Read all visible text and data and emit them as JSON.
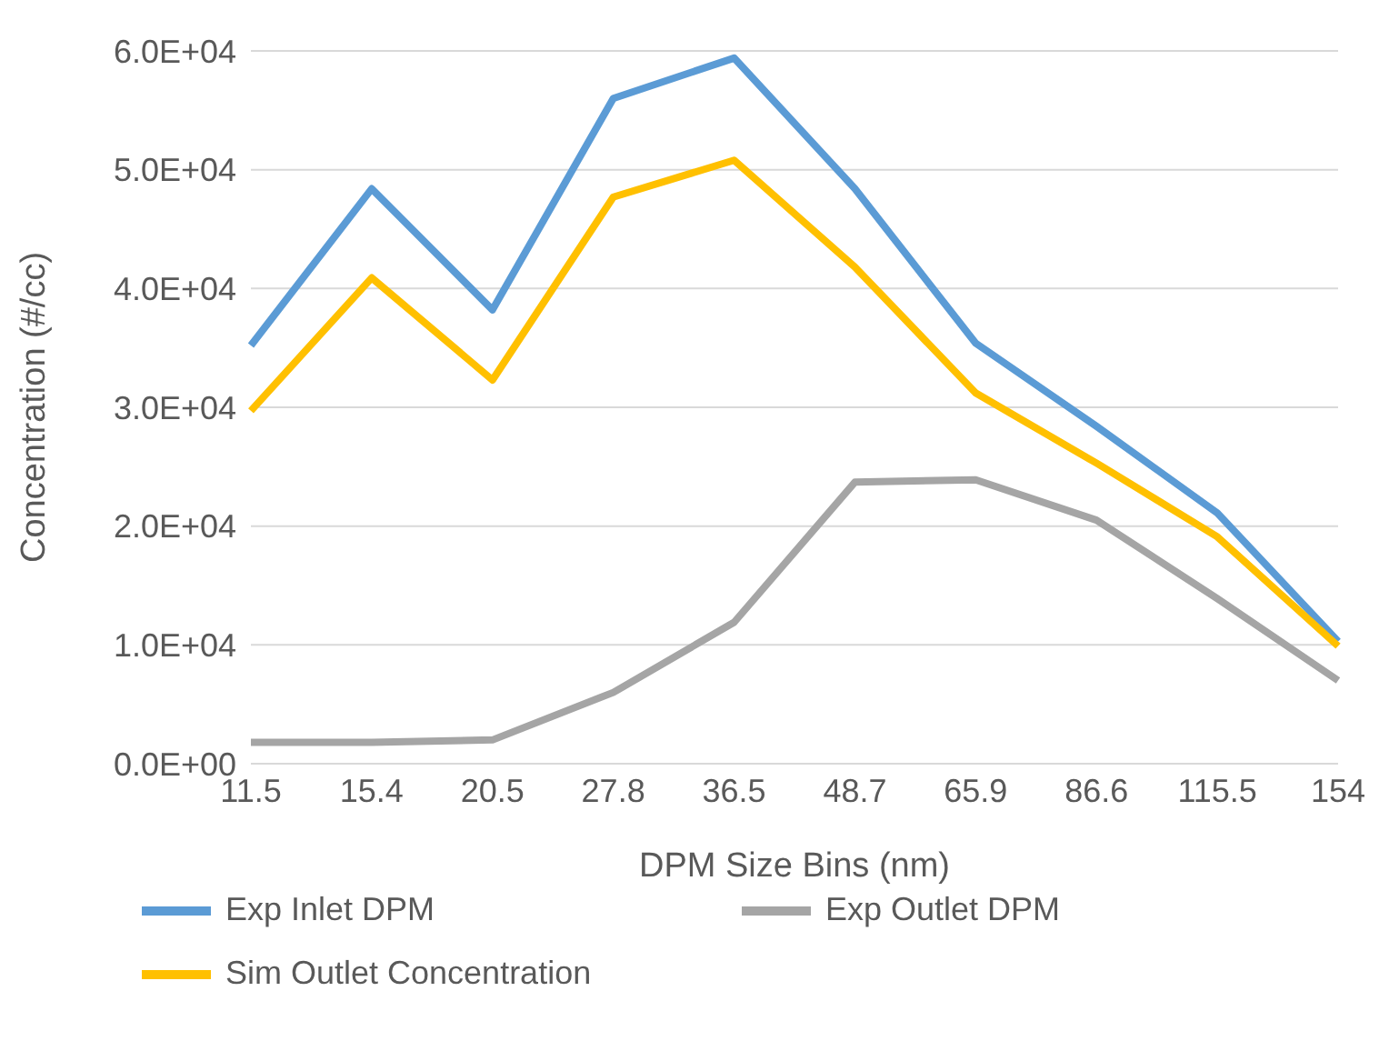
{
  "chart_data": {
    "type": "line",
    "xlabel": "DPM Size Bins (nm)",
    "ylabel": "Concentration (#/cc)",
    "categories": [
      "11.5",
      "15.4",
      "20.5",
      "27.8",
      "36.5",
      "48.7",
      "65.9",
      "86.6",
      "115.5",
      "154"
    ],
    "series": [
      {
        "name": "Exp Inlet DPM",
        "color": "#5b9bd5",
        "values": [
          35200,
          48400,
          38200,
          56000,
          59400,
          48400,
          35400,
          28400,
          21100,
          10300
        ]
      },
      {
        "name": "Exp Outlet DPM",
        "color": "#a5a5a5",
        "values": [
          1800,
          1800,
          2000,
          6000,
          11900,
          23700,
          23900,
          20500,
          13900,
          7000
        ]
      },
      {
        "name": "Sim Outlet Concentration",
        "color": "#ffc000",
        "values": [
          29700,
          40900,
          32300,
          47700,
          50800,
          41800,
          31200,
          25300,
          19100,
          9900
        ]
      }
    ],
    "ylim": [
      0,
      60000
    ],
    "yticks": [
      {
        "value": 0,
        "label": "0.0E+00"
      },
      {
        "value": 10000,
        "label": "1.0E+04"
      },
      {
        "value": 20000,
        "label": "2.0E+04"
      },
      {
        "value": 30000,
        "label": "3.0E+04"
      },
      {
        "value": 40000,
        "label": "4.0E+04"
      },
      {
        "value": 50000,
        "label": "5.0E+04"
      },
      {
        "value": 60000,
        "label": "6.0E+04"
      }
    ],
    "grid": "y",
    "legend": "bottom",
    "marker": "none",
    "line_style": "solid"
  }
}
